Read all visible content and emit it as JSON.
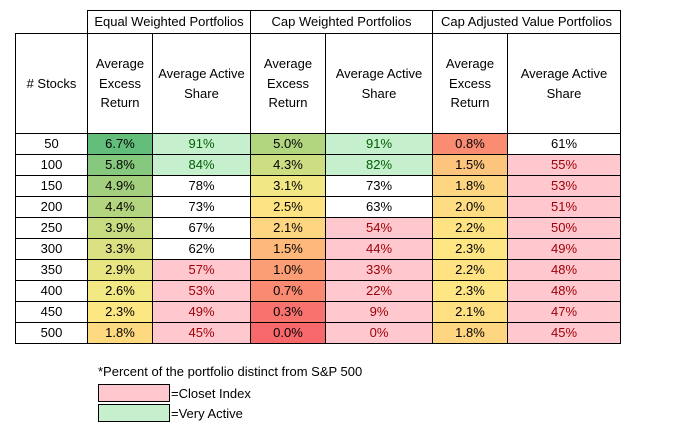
{
  "groups": {
    "equal": "Equal Weighted Portfolios",
    "cap": "Cap Weighted Portfolios",
    "capadj": "Cap Adjusted Value Portfolios"
  },
  "headers": {
    "stocks": "# Stocks",
    "excess": "Average Excess Return",
    "active": "Average Active Share"
  },
  "rows": [
    {
      "stocks": "50",
      "eq_ret": "6.7%",
      "eq_share": "91%",
      "cap_ret": "5.0%",
      "cap_share": "91%",
      "adj_ret": "0.8%",
      "adj_share": "61%"
    },
    {
      "stocks": "100",
      "eq_ret": "5.8%",
      "eq_share": "84%",
      "cap_ret": "4.3%",
      "cap_share": "82%",
      "adj_ret": "1.5%",
      "adj_share": "55%"
    },
    {
      "stocks": "150",
      "eq_ret": "4.9%",
      "eq_share": "78%",
      "cap_ret": "3.1%",
      "cap_share": "73%",
      "adj_ret": "1.8%",
      "adj_share": "53%"
    },
    {
      "stocks": "200",
      "eq_ret": "4.4%",
      "eq_share": "73%",
      "cap_ret": "2.5%",
      "cap_share": "63%",
      "adj_ret": "2.0%",
      "adj_share": "51%"
    },
    {
      "stocks": "250",
      "eq_ret": "3.9%",
      "eq_share": "67%",
      "cap_ret": "2.1%",
      "cap_share": "54%",
      "adj_ret": "2.2%",
      "adj_share": "50%"
    },
    {
      "stocks": "300",
      "eq_ret": "3.3%",
      "eq_share": "62%",
      "cap_ret": "1.5%",
      "cap_share": "44%",
      "adj_ret": "2.3%",
      "adj_share": "49%"
    },
    {
      "stocks": "350",
      "eq_ret": "2.9%",
      "eq_share": "57%",
      "cap_ret": "1.0%",
      "cap_share": "33%",
      "adj_ret": "2.2%",
      "adj_share": "48%"
    },
    {
      "stocks": "400",
      "eq_ret": "2.6%",
      "eq_share": "53%",
      "cap_ret": "0.7%",
      "cap_share": "22%",
      "adj_ret": "2.3%",
      "adj_share": "48%"
    },
    {
      "stocks": "450",
      "eq_ret": "2.3%",
      "eq_share": "49%",
      "cap_ret": "0.3%",
      "cap_share": "9%",
      "adj_ret": "2.1%",
      "adj_share": "47%"
    },
    {
      "stocks": "500",
      "eq_ret": "1.8%",
      "eq_share": "45%",
      "cap_ret": "0.0%",
      "cap_share": "0%",
      "adj_ret": "1.8%",
      "adj_share": "45%"
    }
  ],
  "colors": {
    "eq_ret": [
      "#63be7b",
      "#86c97e",
      "#a2d07f",
      "#b4d580",
      "#c7db81",
      "#dbe182",
      "#e8e583",
      "#f2e884",
      "#fde783",
      "#fed980"
    ],
    "eq_share": [
      "#c6efce",
      "#c6efce",
      "#ffffff",
      "#ffffff",
      "#ffffff",
      "#ffffff",
      "#ffc7ce",
      "#ffc7ce",
      "#ffc7ce",
      "#ffc7ce"
    ],
    "cap_ret": [
      "#b2d580",
      "#cddd82",
      "#f1e784",
      "#fee382",
      "#fed580",
      "#fdb87a",
      "#fb9d75",
      "#fa8b72",
      "#f8736d",
      "#f8696b"
    ],
    "cap_share": [
      "#c6efce",
      "#c6efce",
      "#ffffff",
      "#ffffff",
      "#ffc7ce",
      "#ffc7ce",
      "#ffc7ce",
      "#ffc7ce",
      "#ffc7ce",
      "#ffc7ce"
    ],
    "adj_ret": [
      "#fa8c72",
      "#fdc47d",
      "#fed580",
      "#fedc81",
      "#ffe383",
      "#ffe684",
      "#ffe383",
      "#ffe684",
      "#fedf82",
      "#fed580"
    ],
    "adj_share": [
      "#ffffff",
      "#ffc7ce",
      "#ffc7ce",
      "#ffc7ce",
      "#ffc7ce",
      "#ffc7ce",
      "#ffc7ce",
      "#ffc7ce",
      "#ffc7ce",
      "#ffc7ce"
    ],
    "text_green": "#006100",
    "text_red": "#9c0006",
    "closet": "#ffc7ce",
    "active": "#c6efce"
  },
  "note": "*Percent of the portfolio distinct from S&P 500",
  "legend": {
    "closet": "=Closet Index",
    "active": "=Very Active"
  }
}
